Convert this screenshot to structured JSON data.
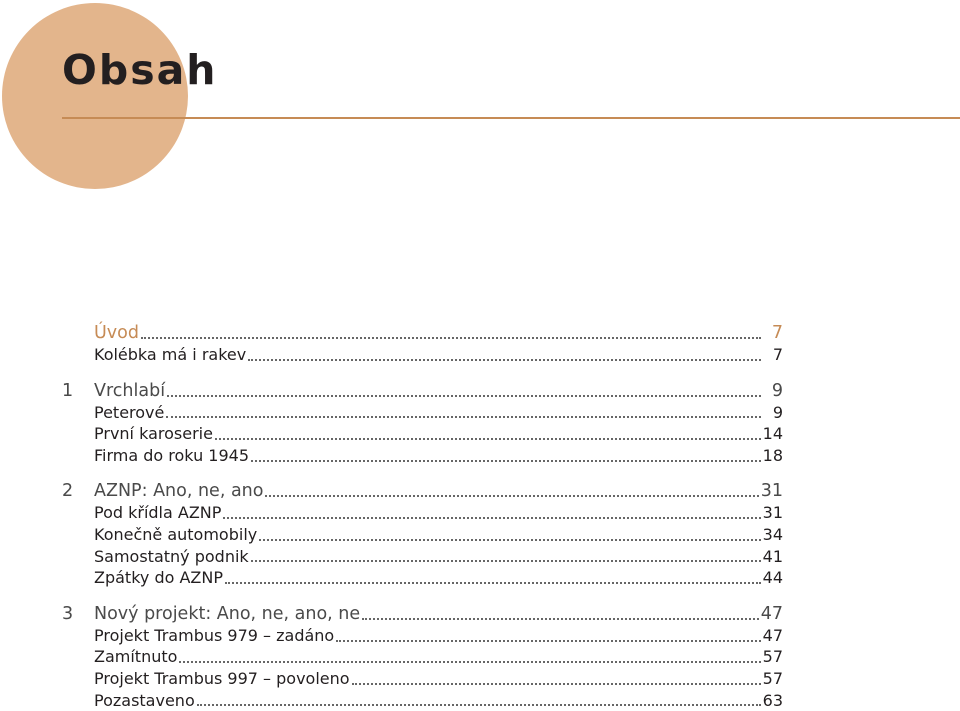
{
  "header": {
    "title": "Obsah"
  },
  "toc": [
    {
      "num": "",
      "label": "Úvod",
      "page": "7",
      "level": "chapter",
      "intro": true
    },
    {
      "num": "",
      "label": "Kolébka má i rakev",
      "page": "7",
      "level": "sub"
    },
    {
      "gap": true
    },
    {
      "num": "1",
      "label": "Vrchlabí",
      "page": "9",
      "level": "chapter"
    },
    {
      "num": "",
      "label": "Peterové",
      "page": "9",
      "level": "sub"
    },
    {
      "num": "",
      "label": "První karoserie",
      "page": "14",
      "level": "sub"
    },
    {
      "num": "",
      "label": "Firma do roku 1945",
      "page": "18",
      "level": "sub"
    },
    {
      "gap": true
    },
    {
      "num": "2",
      "label": "AZNP: Ano, ne, ano",
      "page": "31",
      "level": "chapter"
    },
    {
      "num": "",
      "label": "Pod křídla AZNP",
      "page": "31",
      "level": "sub"
    },
    {
      "num": "",
      "label": "Konečně automobily",
      "page": "34",
      "level": "sub"
    },
    {
      "num": "",
      "label": "Samostatný podnik",
      "page": "41",
      "level": "sub"
    },
    {
      "num": "",
      "label": "Zpátky do AZNP",
      "page": "44",
      "level": "sub"
    },
    {
      "gap": true
    },
    {
      "num": "3",
      "label": "Nový projekt: Ano, ne, ano, ne",
      "page": "47",
      "level": "chapter"
    },
    {
      "num": "",
      "label": "Projekt Trambus 979 – zadáno",
      "page": "47",
      "level": "sub"
    },
    {
      "num": "",
      "label": "Zamítnuto",
      "page": "57",
      "level": "sub"
    },
    {
      "num": "",
      "label": "Projekt Trambus 997 – povoleno",
      "page": "57",
      "level": "sub"
    },
    {
      "num": "",
      "label": "Pozastaveno",
      "page": "63",
      "level": "sub"
    }
  ]
}
